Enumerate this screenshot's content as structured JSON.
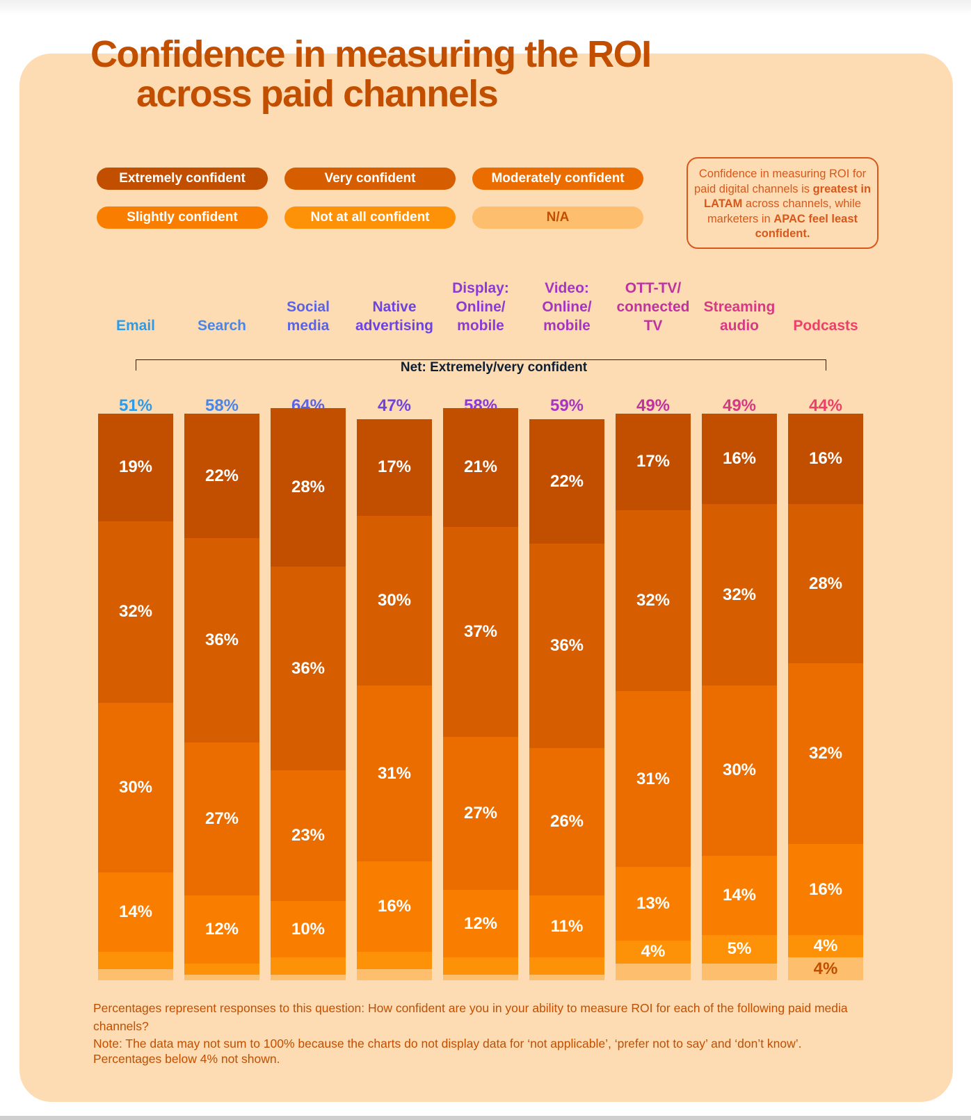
{
  "title": {
    "line1": "Confidence in measuring the ROI",
    "line2": "across paid channels"
  },
  "legend": [
    {
      "label": "Extremely confident",
      "color": "#c24e00",
      "text_color": "#ffffff"
    },
    {
      "label": "Very confident",
      "color": "#d75e00",
      "text_color": "#ffffff"
    },
    {
      "label": "Moderately confident",
      "color": "#eb6d00",
      "text_color": "#ffffff"
    },
    {
      "label": "Slightly confident",
      "color": "#f97e00",
      "text_color": "#ffffff"
    },
    {
      "label": "Not at all confident",
      "color": "#fd9208",
      "text_color": "#ffffff"
    },
    {
      "label": "N/A",
      "color": "#fdbe6e",
      "text_color": "#c24e00"
    }
  ],
  "callout": {
    "part1": "Confidence in measuring ROI for paid digital channels is ",
    "bold1": "greatest in LATAM",
    "part2": " across channels, while marketers in ",
    "bold2": "APAC feel least confident."
  },
  "net_label": "Net: Extremely/very confident",
  "footnotes": {
    "question": "Percentages represent responses to this question: How confident are you in your ability to measure ROI for each of the following paid media channels?",
    "note": "Note: The data may not sum to 100% because the charts do not display data for ‘not applicable’, ‘prefer not to say’ and ‘don’t know’.",
    "threshold": "Percentages below 4% not shown."
  },
  "chart_data": {
    "type": "bar",
    "stacked": true,
    "title": "Confidence in measuring the ROI across paid channels",
    "xlabel": "",
    "ylabel": "",
    "ylim": [
      0,
      100
    ],
    "grid": false,
    "legend_position": "top",
    "label_threshold": 4,
    "categories": [
      {
        "name": "Email",
        "lines": [
          "Email"
        ],
        "color": "#2e9be8"
      },
      {
        "name": "Search",
        "lines": [
          "Search"
        ],
        "color": "#4a86ea"
      },
      {
        "name": "Social media",
        "lines": [
          "Social",
          "media"
        ],
        "color": "#5a63e6"
      },
      {
        "name": "Native advertising",
        "lines": [
          "Native",
          "advertising"
        ],
        "color": "#6d44e0"
      },
      {
        "name": "Display: Online/mobile",
        "lines": [
          "Display:",
          "Online/",
          "mobile"
        ],
        "color": "#8c3ad6"
      },
      {
        "name": "Video: Online/mobile",
        "lines": [
          "Video:",
          "Online/",
          "mobile"
        ],
        "color": "#a636bf"
      },
      {
        "name": "OTT-TV/connected TV",
        "lines": [
          "OTT-TV/",
          "connected",
          "TV"
        ],
        "color": "#c0339e"
      },
      {
        "name": "Streaming audio",
        "lines": [
          "Streaming",
          "audio"
        ],
        "color": "#d63a82"
      },
      {
        "name": "Podcasts",
        "lines": [
          "Podcasts"
        ],
        "color": "#ee3f6a"
      }
    ],
    "net_values": [
      "51%",
      "58%",
      "64%",
      "47%",
      "58%",
      "59%",
      "49%",
      "49%",
      "44%"
    ],
    "series": [
      {
        "name": "Extremely confident",
        "values": [
          19,
          22,
          28,
          17,
          21,
          22,
          17,
          16,
          16
        ]
      },
      {
        "name": "Very confident",
        "values": [
          32,
          36,
          36,
          30,
          37,
          36,
          32,
          32,
          28
        ]
      },
      {
        "name": "Moderately confident",
        "values": [
          30,
          27,
          23,
          31,
          27,
          26,
          31,
          30,
          32
        ]
      },
      {
        "name": "Slightly confident",
        "values": [
          14,
          12,
          10,
          16,
          12,
          11,
          13,
          14,
          16
        ]
      },
      {
        "name": "Not at all confident",
        "values": [
          3,
          2,
          3,
          3,
          3,
          3,
          4,
          5,
          4
        ]
      },
      {
        "name": "N/A",
        "values": [
          2,
          1,
          1,
          2,
          1,
          1,
          3,
          3,
          4
        ]
      }
    ]
  }
}
